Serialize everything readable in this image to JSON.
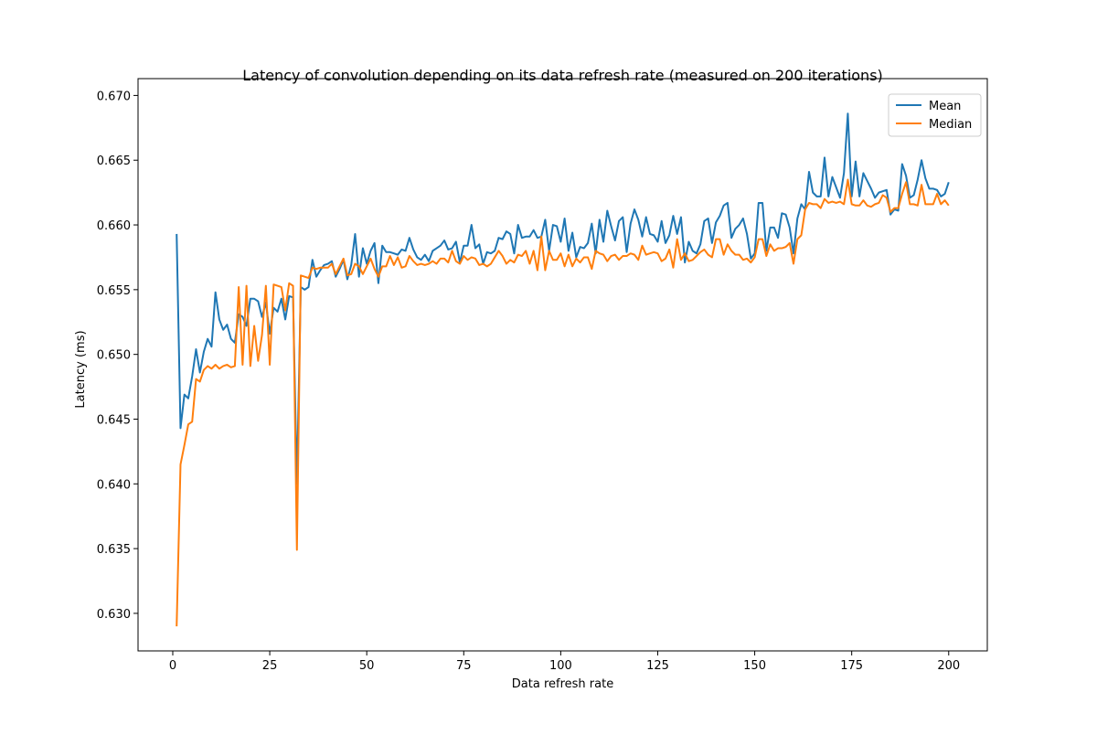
{
  "chart_data": {
    "type": "line",
    "title": "Latency of convolution depending on its data refresh rate (measured on 200 iterations)",
    "xlabel": "Data refresh rate",
    "ylabel": "Latency (ms)",
    "xlim": [
      -8.95,
      209.95
    ],
    "ylim": [
      0.6271,
      0.6713
    ],
    "xticks": [
      0,
      25,
      50,
      75,
      100,
      125,
      150,
      175,
      200
    ],
    "xtick_labels": [
      "0",
      "25",
      "50",
      "75",
      "100",
      "125",
      "150",
      "175",
      "200"
    ],
    "yticks": [
      0.63,
      0.635,
      0.64,
      0.645,
      0.65,
      0.655,
      0.66,
      0.665,
      0.67
    ],
    "ytick_labels": [
      "0.630",
      "0.635",
      "0.640",
      "0.645",
      "0.650",
      "0.655",
      "0.660",
      "0.665",
      "0.670"
    ],
    "grid": false,
    "legend_position": "top-right",
    "x_start": 1,
    "series": [
      {
        "name": "Mean",
        "color": "#1f77b4",
        "values": [
          0.6593,
          0.6443,
          0.6469,
          0.6466,
          0.6483,
          0.6504,
          0.6486,
          0.6502,
          0.6512,
          0.6506,
          0.6548,
          0.6527,
          0.6519,
          0.6523,
          0.6512,
          0.6509,
          0.6531,
          0.6529,
          0.6522,
          0.6543,
          0.6543,
          0.6541,
          0.6529,
          0.654,
          0.6516,
          0.6536,
          0.6533,
          0.6543,
          0.6527,
          0.6545,
          0.6544,
          0.64,
          0.6552,
          0.655,
          0.6552,
          0.6573,
          0.656,
          0.6565,
          0.6569,
          0.657,
          0.6572,
          0.656,
          0.6566,
          0.6573,
          0.6558,
          0.6569,
          0.6593,
          0.656,
          0.6582,
          0.657,
          0.658,
          0.6586,
          0.6555,
          0.6584,
          0.6579,
          0.6579,
          0.6578,
          0.6577,
          0.6581,
          0.658,
          0.659,
          0.6581,
          0.6575,
          0.6573,
          0.6577,
          0.6572,
          0.658,
          0.6582,
          0.6584,
          0.6588,
          0.6581,
          0.6582,
          0.6587,
          0.6571,
          0.6584,
          0.6584,
          0.66,
          0.6582,
          0.6585,
          0.657,
          0.6579,
          0.6578,
          0.658,
          0.659,
          0.6589,
          0.6595,
          0.6593,
          0.6578,
          0.66,
          0.659,
          0.6591,
          0.6591,
          0.6596,
          0.659,
          0.6591,
          0.6604,
          0.658,
          0.66,
          0.6599,
          0.6587,
          0.6605,
          0.658,
          0.6594,
          0.6575,
          0.6583,
          0.6582,
          0.6586,
          0.6601,
          0.6578,
          0.6604,
          0.6587,
          0.6611,
          0.6599,
          0.6588,
          0.6603,
          0.6606,
          0.6579,
          0.6601,
          0.6612,
          0.6604,
          0.6591,
          0.6606,
          0.6593,
          0.6592,
          0.6587,
          0.6603,
          0.6586,
          0.6592,
          0.6607,
          0.6593,
          0.6606,
          0.6571,
          0.6587,
          0.658,
          0.6578,
          0.6585,
          0.6603,
          0.6605,
          0.6586,
          0.6602,
          0.6607,
          0.6615,
          0.6617,
          0.659,
          0.6597,
          0.66,
          0.6605,
          0.6593,
          0.6574,
          0.6578,
          0.6617,
          0.6617,
          0.658,
          0.6598,
          0.6598,
          0.659,
          0.6609,
          0.6608,
          0.6598,
          0.6578,
          0.6605,
          0.6616,
          0.6612,
          0.6641,
          0.6625,
          0.6622,
          0.6622,
          0.6652,
          0.6622,
          0.6637,
          0.6629,
          0.6621,
          0.664,
          0.6686,
          0.6622,
          0.6649,
          0.6622,
          0.664,
          0.6634,
          0.6628,
          0.6621,
          0.6625,
          0.6626,
          0.6627,
          0.6608,
          0.6612,
          0.6611,
          0.6647,
          0.6638,
          0.6621,
          0.6623,
          0.6635,
          0.665,
          0.6636,
          0.6628,
          0.6628,
          0.6627,
          0.6622,
          0.6624,
          0.6633
        ]
      },
      {
        "name": "Median",
        "color": "#ff7f0e",
        "values": [
          0.629,
          0.6415,
          0.643,
          0.6446,
          0.6448,
          0.6481,
          0.6479,
          0.6488,
          0.6491,
          0.6489,
          0.6492,
          0.6489,
          0.6491,
          0.6492,
          0.649,
          0.6491,
          0.6552,
          0.6492,
          0.6553,
          0.6491,
          0.6522,
          0.6495,
          0.6515,
          0.6553,
          0.6492,
          0.6554,
          0.6553,
          0.6552,
          0.6534,
          0.6555,
          0.6553,
          0.6349,
          0.6561,
          0.656,
          0.6559,
          0.6567,
          0.6566,
          0.6567,
          0.6567,
          0.6567,
          0.657,
          0.6562,
          0.6568,
          0.6574,
          0.6561,
          0.6562,
          0.657,
          0.6568,
          0.6562,
          0.6568,
          0.6574,
          0.6566,
          0.656,
          0.6568,
          0.6568,
          0.6576,
          0.6569,
          0.6575,
          0.6567,
          0.6568,
          0.6576,
          0.6572,
          0.6569,
          0.657,
          0.6569,
          0.657,
          0.6572,
          0.657,
          0.6574,
          0.6574,
          0.6571,
          0.658,
          0.6572,
          0.657,
          0.6576,
          0.6573,
          0.6575,
          0.6574,
          0.6569,
          0.657,
          0.6568,
          0.657,
          0.6575,
          0.658,
          0.6576,
          0.657,
          0.6573,
          0.6571,
          0.6577,
          0.6576,
          0.658,
          0.657,
          0.658,
          0.6565,
          0.6591,
          0.6565,
          0.658,
          0.6573,
          0.6573,
          0.6578,
          0.6568,
          0.6577,
          0.6568,
          0.6574,
          0.6571,
          0.6575,
          0.6575,
          0.6566,
          0.658,
          0.6578,
          0.6577,
          0.6572,
          0.6576,
          0.6577,
          0.6573,
          0.6576,
          0.6576,
          0.6578,
          0.6577,
          0.6573,
          0.6584,
          0.6577,
          0.6578,
          0.6579,
          0.6578,
          0.6572,
          0.6574,
          0.6581,
          0.6567,
          0.6589,
          0.6573,
          0.6578,
          0.6572,
          0.6573,
          0.6576,
          0.6579,
          0.6581,
          0.6577,
          0.6575,
          0.6589,
          0.6589,
          0.6577,
          0.6585,
          0.658,
          0.6577,
          0.6577,
          0.6573,
          0.6574,
          0.6571,
          0.6575,
          0.6589,
          0.6589,
          0.6576,
          0.6585,
          0.658,
          0.6582,
          0.6582,
          0.6583,
          0.6586,
          0.657,
          0.6589,
          0.6592,
          0.6612,
          0.6617,
          0.6616,
          0.6616,
          0.6613,
          0.662,
          0.6617,
          0.6618,
          0.6617,
          0.6618,
          0.6616,
          0.6635,
          0.6616,
          0.6615,
          0.6615,
          0.6619,
          0.6615,
          0.6614,
          0.6616,
          0.6617,
          0.6623,
          0.6621,
          0.661,
          0.6613,
          0.6613,
          0.6624,
          0.6633,
          0.6616,
          0.6616,
          0.6615,
          0.6631,
          0.6616,
          0.6616,
          0.6616,
          0.6624,
          0.6616,
          0.6619,
          0.6615
        ]
      }
    ]
  }
}
